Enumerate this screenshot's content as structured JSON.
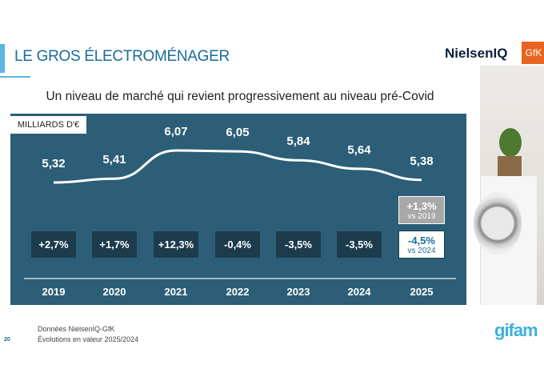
{
  "header": {
    "title": "LE GROS ÉLECTROMÉNAGER",
    "logo_nielsen": "NielsenIQ",
    "logo_gfk": "GfK"
  },
  "subtitle": "Un niveau de marché qui revient progressivement au niveau pré-Covid",
  "chart_data": {
    "type": "line",
    "unit_label": "MILLIARDS D'€",
    "categories": [
      "2019",
      "2020",
      "2021",
      "2022",
      "2023",
      "2024",
      "2025"
    ],
    "values": [
      5.32,
      5.41,
      6.07,
      6.05,
      5.84,
      5.64,
      5.38
    ],
    "value_labels": [
      "5,32",
      "5,41",
      "6,07",
      "6,05",
      "5,84",
      "5,64",
      "5,38"
    ],
    "growth_labels": [
      "+2,7%",
      "+1,7%",
      "+12,3%",
      "-0,4%",
      "-3,5%",
      "-3,5%"
    ],
    "comparisons": [
      {
        "value": "+1,3%",
        "label": "vs 2019"
      },
      {
        "value": "-4,5%",
        "label": "vs 2024"
      }
    ]
  },
  "footer": {
    "source": "Données NielsenIQ-GfK",
    "note": "Évolutions en valeur 2025/2024",
    "page": "20",
    "logo": "gifam"
  },
  "colors": {
    "panel": "#2c5e77",
    "accent": "#5bb7e0",
    "title": "#1a6c9a",
    "box": "#1c3c4e"
  }
}
